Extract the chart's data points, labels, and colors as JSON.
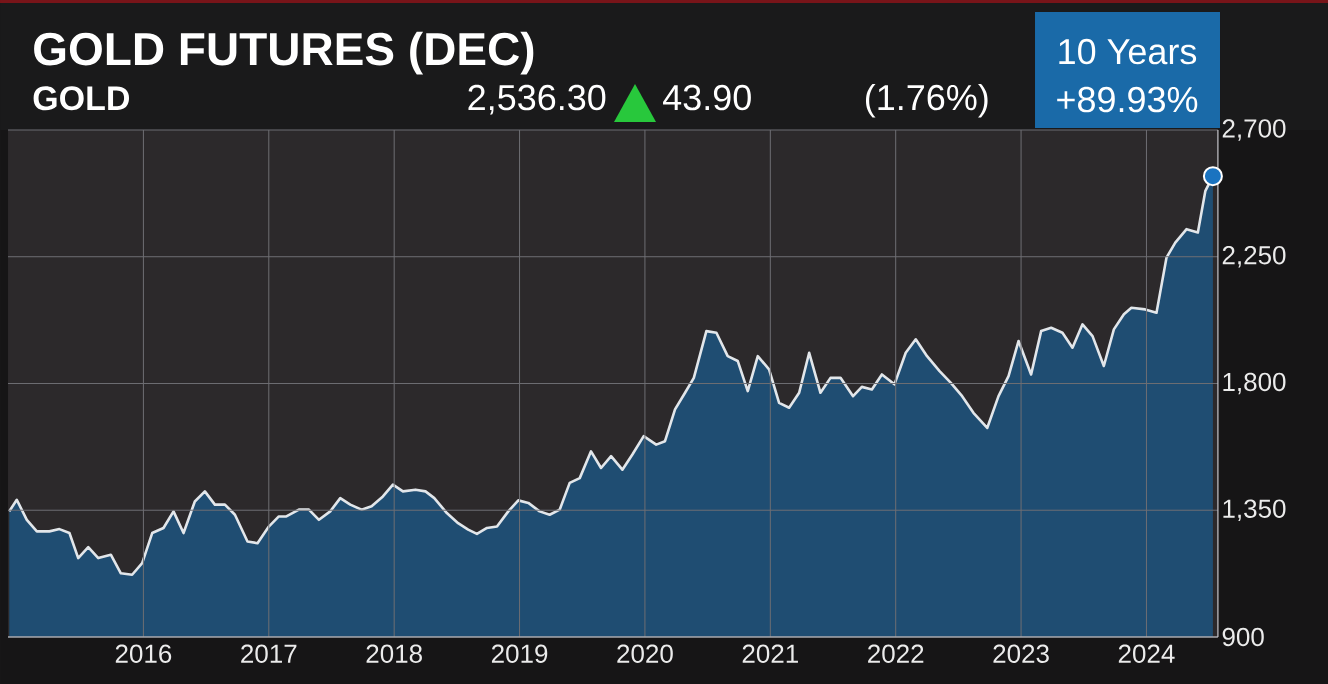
{
  "chart_data": {
    "type": "area",
    "title": "GOLD FUTURES (DEC)",
    "subtitle": "GOLD",
    "annotations": [
      "2,536.30",
      "43.90",
      "(1.76%)",
      "10 Years",
      "+89.93%"
    ],
    "x": [
      2014.93,
      2014.99,
      2015.07,
      2015.15,
      2015.25,
      2015.33,
      2015.41,
      2015.48,
      2015.56,
      2015.64,
      2015.74,
      2015.82,
      2015.91,
      2015.99,
      2016.07,
      2016.16,
      2016.24,
      2016.32,
      2016.41,
      2016.49,
      2016.57,
      2016.65,
      2016.73,
      2016.83,
      2016.91,
      2017.0,
      2017.08,
      2017.14,
      2017.24,
      2017.32,
      2017.4,
      2017.49,
      2017.57,
      2017.65,
      2017.74,
      2017.82,
      2017.91,
      2017.99,
      2018.07,
      2018.17,
      2018.25,
      2018.32,
      2018.42,
      2018.51,
      2018.59,
      2018.66,
      2018.74,
      2018.82,
      2018.91,
      2018.99,
      2019.07,
      2019.16,
      2019.24,
      2019.32,
      2019.4,
      2019.48,
      2019.57,
      2019.65,
      2019.73,
      2019.82,
      2019.9,
      2019.99,
      2020.09,
      2020.16,
      2020.24,
      2020.32,
      2020.39,
      2020.49,
      2020.57,
      2020.66,
      2020.74,
      2020.82,
      2020.9,
      2020.99,
      2021.07,
      2021.15,
      2021.23,
      2021.31,
      2021.4,
      2021.48,
      2021.56,
      2021.66,
      2021.73,
      2021.81,
      2021.89,
      2021.99,
      2022.08,
      2022.16,
      2022.25,
      2022.35,
      2022.44,
      2022.53,
      2022.62,
      2022.73,
      2022.82,
      2022.9,
      2022.98,
      2023.08,
      2023.16,
      2023.24,
      2023.33,
      2023.41,
      2023.49,
      2023.57,
      2023.66,
      2023.74,
      2023.82,
      2023.88,
      2023.99,
      2024.08,
      2024.16,
      2024.23,
      2024.32,
      2024.41,
      2024.47,
      2024.53
    ],
    "series": [
      {
        "color": "#1f4d72",
        "values": [
          1346,
          1387,
          1316,
          1275,
          1275,
          1283,
          1269,
          1180,
          1219,
          1180,
          1192,
          1126,
          1121,
          1162,
          1269,
          1287,
          1346,
          1269,
          1381,
          1417,
          1370,
          1370,
          1334,
          1239,
          1233,
          1292,
          1328,
          1328,
          1352,
          1352,
          1316,
          1346,
          1393,
          1370,
          1352,
          1364,
          1399,
          1441,
          1417,
          1423,
          1417,
          1393,
          1340,
          1304,
          1281,
          1266,
          1287,
          1292,
          1346,
          1385,
          1376,
          1346,
          1334,
          1352,
          1447,
          1464,
          1559,
          1500,
          1542,
          1494,
          1548,
          1613,
          1583,
          1595,
          1708,
          1767,
          1820,
          1986,
          1980,
          1897,
          1880,
          1773,
          1897,
          1850,
          1731,
          1714,
          1767,
          1909,
          1767,
          1820,
          1820,
          1755,
          1788,
          1779,
          1832,
          1797,
          1909,
          1957,
          1897,
          1844,
          1802,
          1755,
          1696,
          1642,
          1755,
          1826,
          1951,
          1832,
          1986,
          1998,
          1980,
          1927,
          2010,
          1968,
          1862,
          1992,
          2046,
          2069,
          2063,
          2051,
          2247,
          2300,
          2348,
          2336,
          2484,
          2536
        ]
      }
    ],
    "xlim": [
      2014.92,
      2024.57
    ],
    "ylim": [
      900,
      2700
    ],
    "xticks": [
      2016,
      2017,
      2018,
      2019,
      2020,
      2021,
      2022,
      2023,
      2024
    ],
    "yticks": [
      {
        "value": 900,
        "label": "900"
      },
      {
        "value": 1350,
        "label": "1,350"
      },
      {
        "value": 1800,
        "label": "1,800"
      },
      {
        "value": 2250,
        "label": "2,250"
      },
      {
        "value": 2700,
        "label": "2,700"
      }
    ],
    "grid": true
  }
}
